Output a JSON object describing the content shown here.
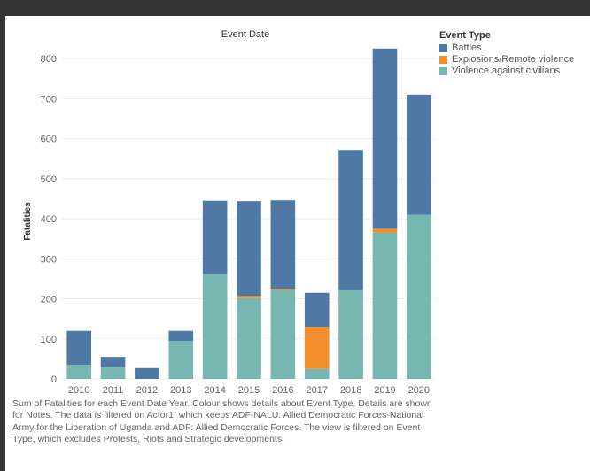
{
  "chart_data": {
    "type": "bar",
    "stacked": true,
    "title": "Event Date",
    "xlabel": "",
    "ylabel": "Fatalities",
    "ylim": [
      0,
      840
    ],
    "yticks": [
      0,
      100,
      200,
      300,
      400,
      500,
      600,
      700,
      800
    ],
    "categories": [
      "2010",
      "2011",
      "2012",
      "2013",
      "2014",
      "2015",
      "2016",
      "2017",
      "2018",
      "2019",
      "2020"
    ],
    "series": [
      {
        "name": "Violence against civilians",
        "color": "#76b7b2",
        "values": [
          35,
          30,
          0,
          95,
          262,
          202,
          222,
          25,
          222,
          365,
          410
        ]
      },
      {
        "name": "Explosions/Remote violence",
        "color": "#f28e2b",
        "values": [
          0,
          0,
          0,
          0,
          0,
          5,
          3,
          105,
          0,
          10,
          0
        ]
      },
      {
        "name": "Battles",
        "color": "#4e79a7",
        "values": [
          85,
          25,
          27,
          25,
          183,
          237,
          221,
          85,
          350,
          450,
          300
        ]
      }
    ],
    "grid": true,
    "legend": "top-right"
  },
  "legend": {
    "title": "Event Type",
    "items": [
      {
        "label": "Battles",
        "color": "#4e79a7"
      },
      {
        "label": "Explosions/Remote violence",
        "color": "#f28e2b"
      },
      {
        "label": "Violence against civilians",
        "color": "#76b7b2"
      }
    ]
  },
  "caption": "Sum of Fatalities for each Event Date Year. Colour shows details about Event Type. Details are shown for Notes. The data is filtered on Actor1, which keeps ADF-NALU: Allied Democratic Forces-National Army for the Liberation of Uganda and ADF: Allied Democratic Forces. The view is filtered on Event Type, which excludes Protests, Riots and Strategic developments."
}
